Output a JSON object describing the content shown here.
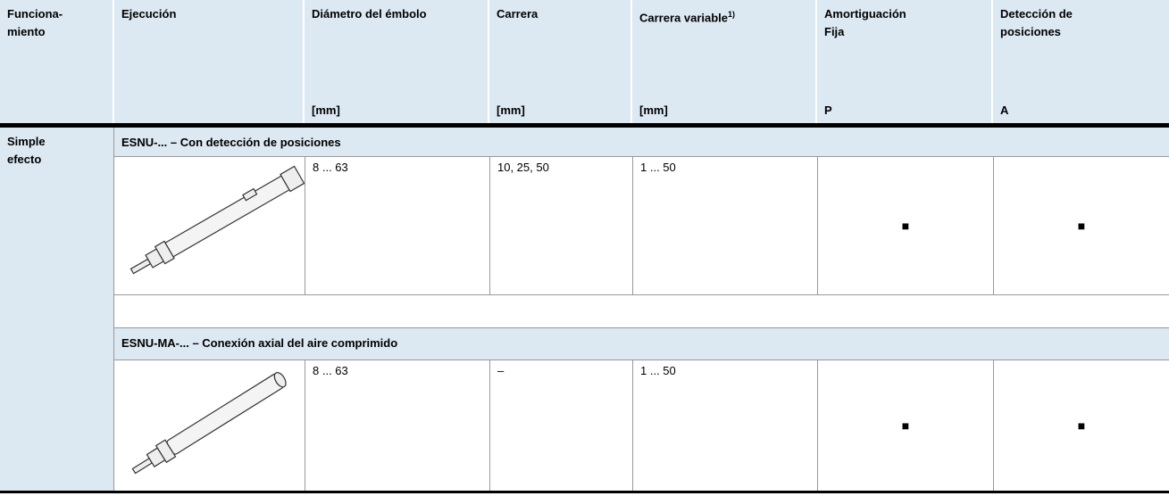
{
  "header": {
    "columns": [
      {
        "title": "Funciona-\nmiento",
        "unit": null
      },
      {
        "title": "Ejecución",
        "unit": null
      },
      {
        "title": "Diámetro del émbolo",
        "unit": "[mm]"
      },
      {
        "title": "Carrera",
        "unit": "[mm]"
      },
      {
        "title": "Carrera variable",
        "note": "1)",
        "unit": "[mm]"
      },
      {
        "title": "Amortiguación\nFija",
        "unit": "P"
      },
      {
        "title": "Detección de\nposiciones",
        "unit": "A"
      }
    ]
  },
  "body": {
    "function": "Simple\nefecto",
    "sections": [
      {
        "title": "ESNU-... – Con detección de posiciones",
        "cells": [
          "8 ... 63",
          "10, 25, 50",
          "1 ... 50",
          "■",
          "■"
        ]
      },
      {
        "title": "ESNU-MA-... – Conexión axial del aire comprimido",
        "cells": [
          "8 ... 63",
          "–",
          "1 ... 50",
          "■",
          "■"
        ]
      }
    ]
  }
}
